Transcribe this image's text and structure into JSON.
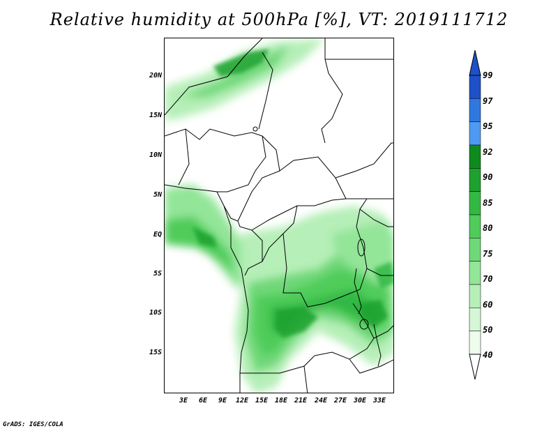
{
  "title": "Relative humidity at 500hPa [%], VT: 2019111712",
  "footer": "GrADS: IGES/COLA",
  "map": {
    "lat_labels": [
      "20N",
      "15N",
      "10N",
      "5N",
      "EQ",
      "5S",
      "10S",
      "15S"
    ],
    "lon_labels": [
      "3E",
      "6E",
      "9E",
      "12E",
      "15E",
      "18E",
      "21E",
      "24E",
      "27E",
      "30E",
      "33E"
    ]
  },
  "colorbar": {
    "levels": [
      "99",
      "97",
      "95",
      "92",
      "90",
      "85",
      "80",
      "75",
      "70",
      "60",
      "50",
      "40"
    ],
    "colors": [
      "#1e50c8",
      "#2f78e0",
      "#4f9af0",
      "#0f8a1e",
      "#1ea12e",
      "#33b844",
      "#4fcc5a",
      "#6fd878",
      "#93e598",
      "#b6efb8",
      "#d6f7d6",
      "#eefced"
    ]
  }
}
